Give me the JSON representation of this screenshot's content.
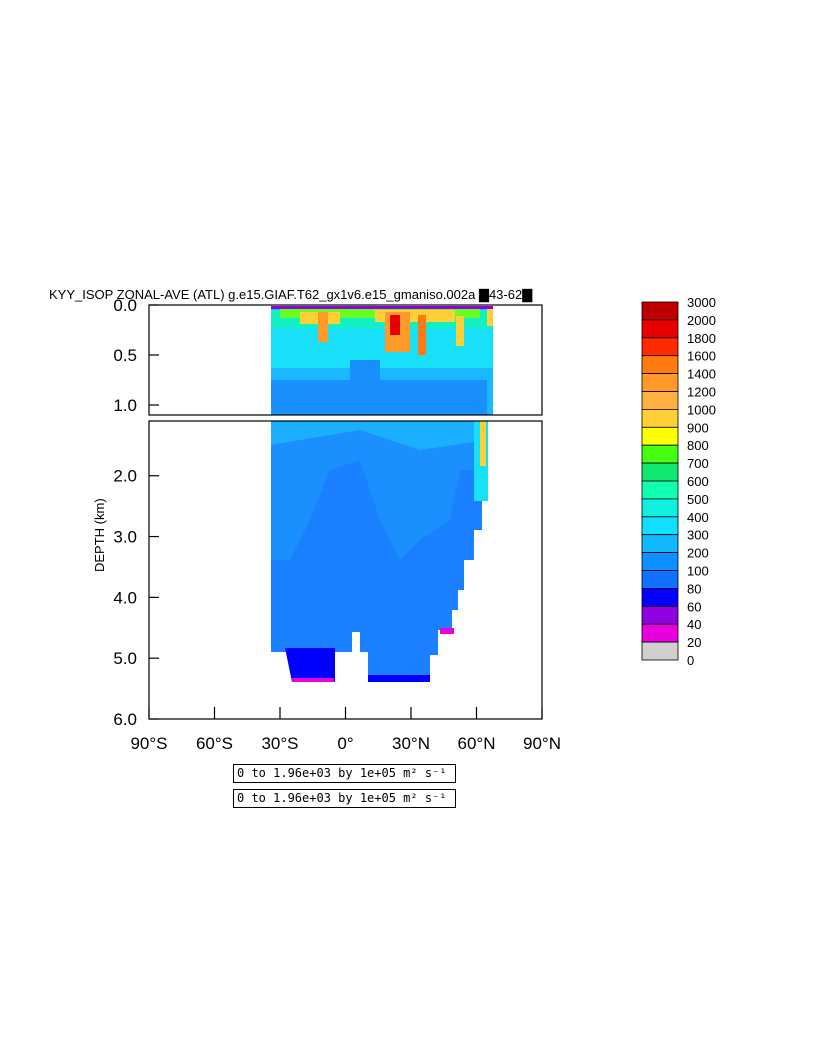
{
  "chart_data": {
    "type": "heatmap",
    "title": "KYY_ISOP ZONAL-AVE (ATL) g.e15.GIAF.T62_gx1v6.e15_gmaniso.002a ▇43-62▇",
    "ylabel": "DEPTH (km)",
    "xlabel": "",
    "x_ticks": [
      "90°S",
      "60°S",
      "30°S",
      "0°",
      "30°N",
      "60°N",
      "90°N"
    ],
    "x_tick_values": [
      -90,
      -60,
      -30,
      0,
      30,
      60,
      90
    ],
    "xlim": [
      -90,
      90
    ],
    "y_ticks_upper": [
      "0.0",
      "0.5",
      "1.0"
    ],
    "y_tick_values_upper": [
      0.0,
      0.5,
      1.0
    ],
    "ylim_upper": [
      0,
      1.1
    ],
    "y_ticks_lower": [
      "2.0",
      "3.0",
      "4.0",
      "5.0",
      "6.0"
    ],
    "y_tick_values_lower": [
      2.0,
      3.0,
      4.0,
      5.0,
      6.0
    ],
    "ylim_lower": [
      1.1,
      6.0
    ],
    "colorbar_levels": [
      "3000",
      "2000",
      "1800",
      "1600",
      "1400",
      "1200",
      "1000",
      "900",
      "800",
      "700",
      "600",
      "500",
      "400",
      "300",
      "200",
      "100",
      "80",
      "60",
      "40",
      "20",
      "0"
    ],
    "colorbar_colors": [
      "#c00000",
      "#e80000",
      "#ff2a00",
      "#ff7a10",
      "#ff9a28",
      "#ffb040",
      "#ffd036",
      "#ffff00",
      "#44ff10",
      "#10e870",
      "#10ffb0",
      "#10f0e0",
      "#10e0ff",
      "#10b8ff",
      "#1090ff",
      "#1070ff",
      "#0000ff",
      "#9000e0",
      "#e800e0",
      "#d0d0d0",
      "#707070"
    ],
    "legend_position": "right",
    "contour_label": "0 to 1.96e+03 by 1e+05 m² s⁻¹"
  },
  "info_boxes": [
    "0 to 1.96e+03 by 1e+05 m² s⁻¹",
    "0 to 1.96e+03 by 1e+05 m² s⁻¹"
  ]
}
